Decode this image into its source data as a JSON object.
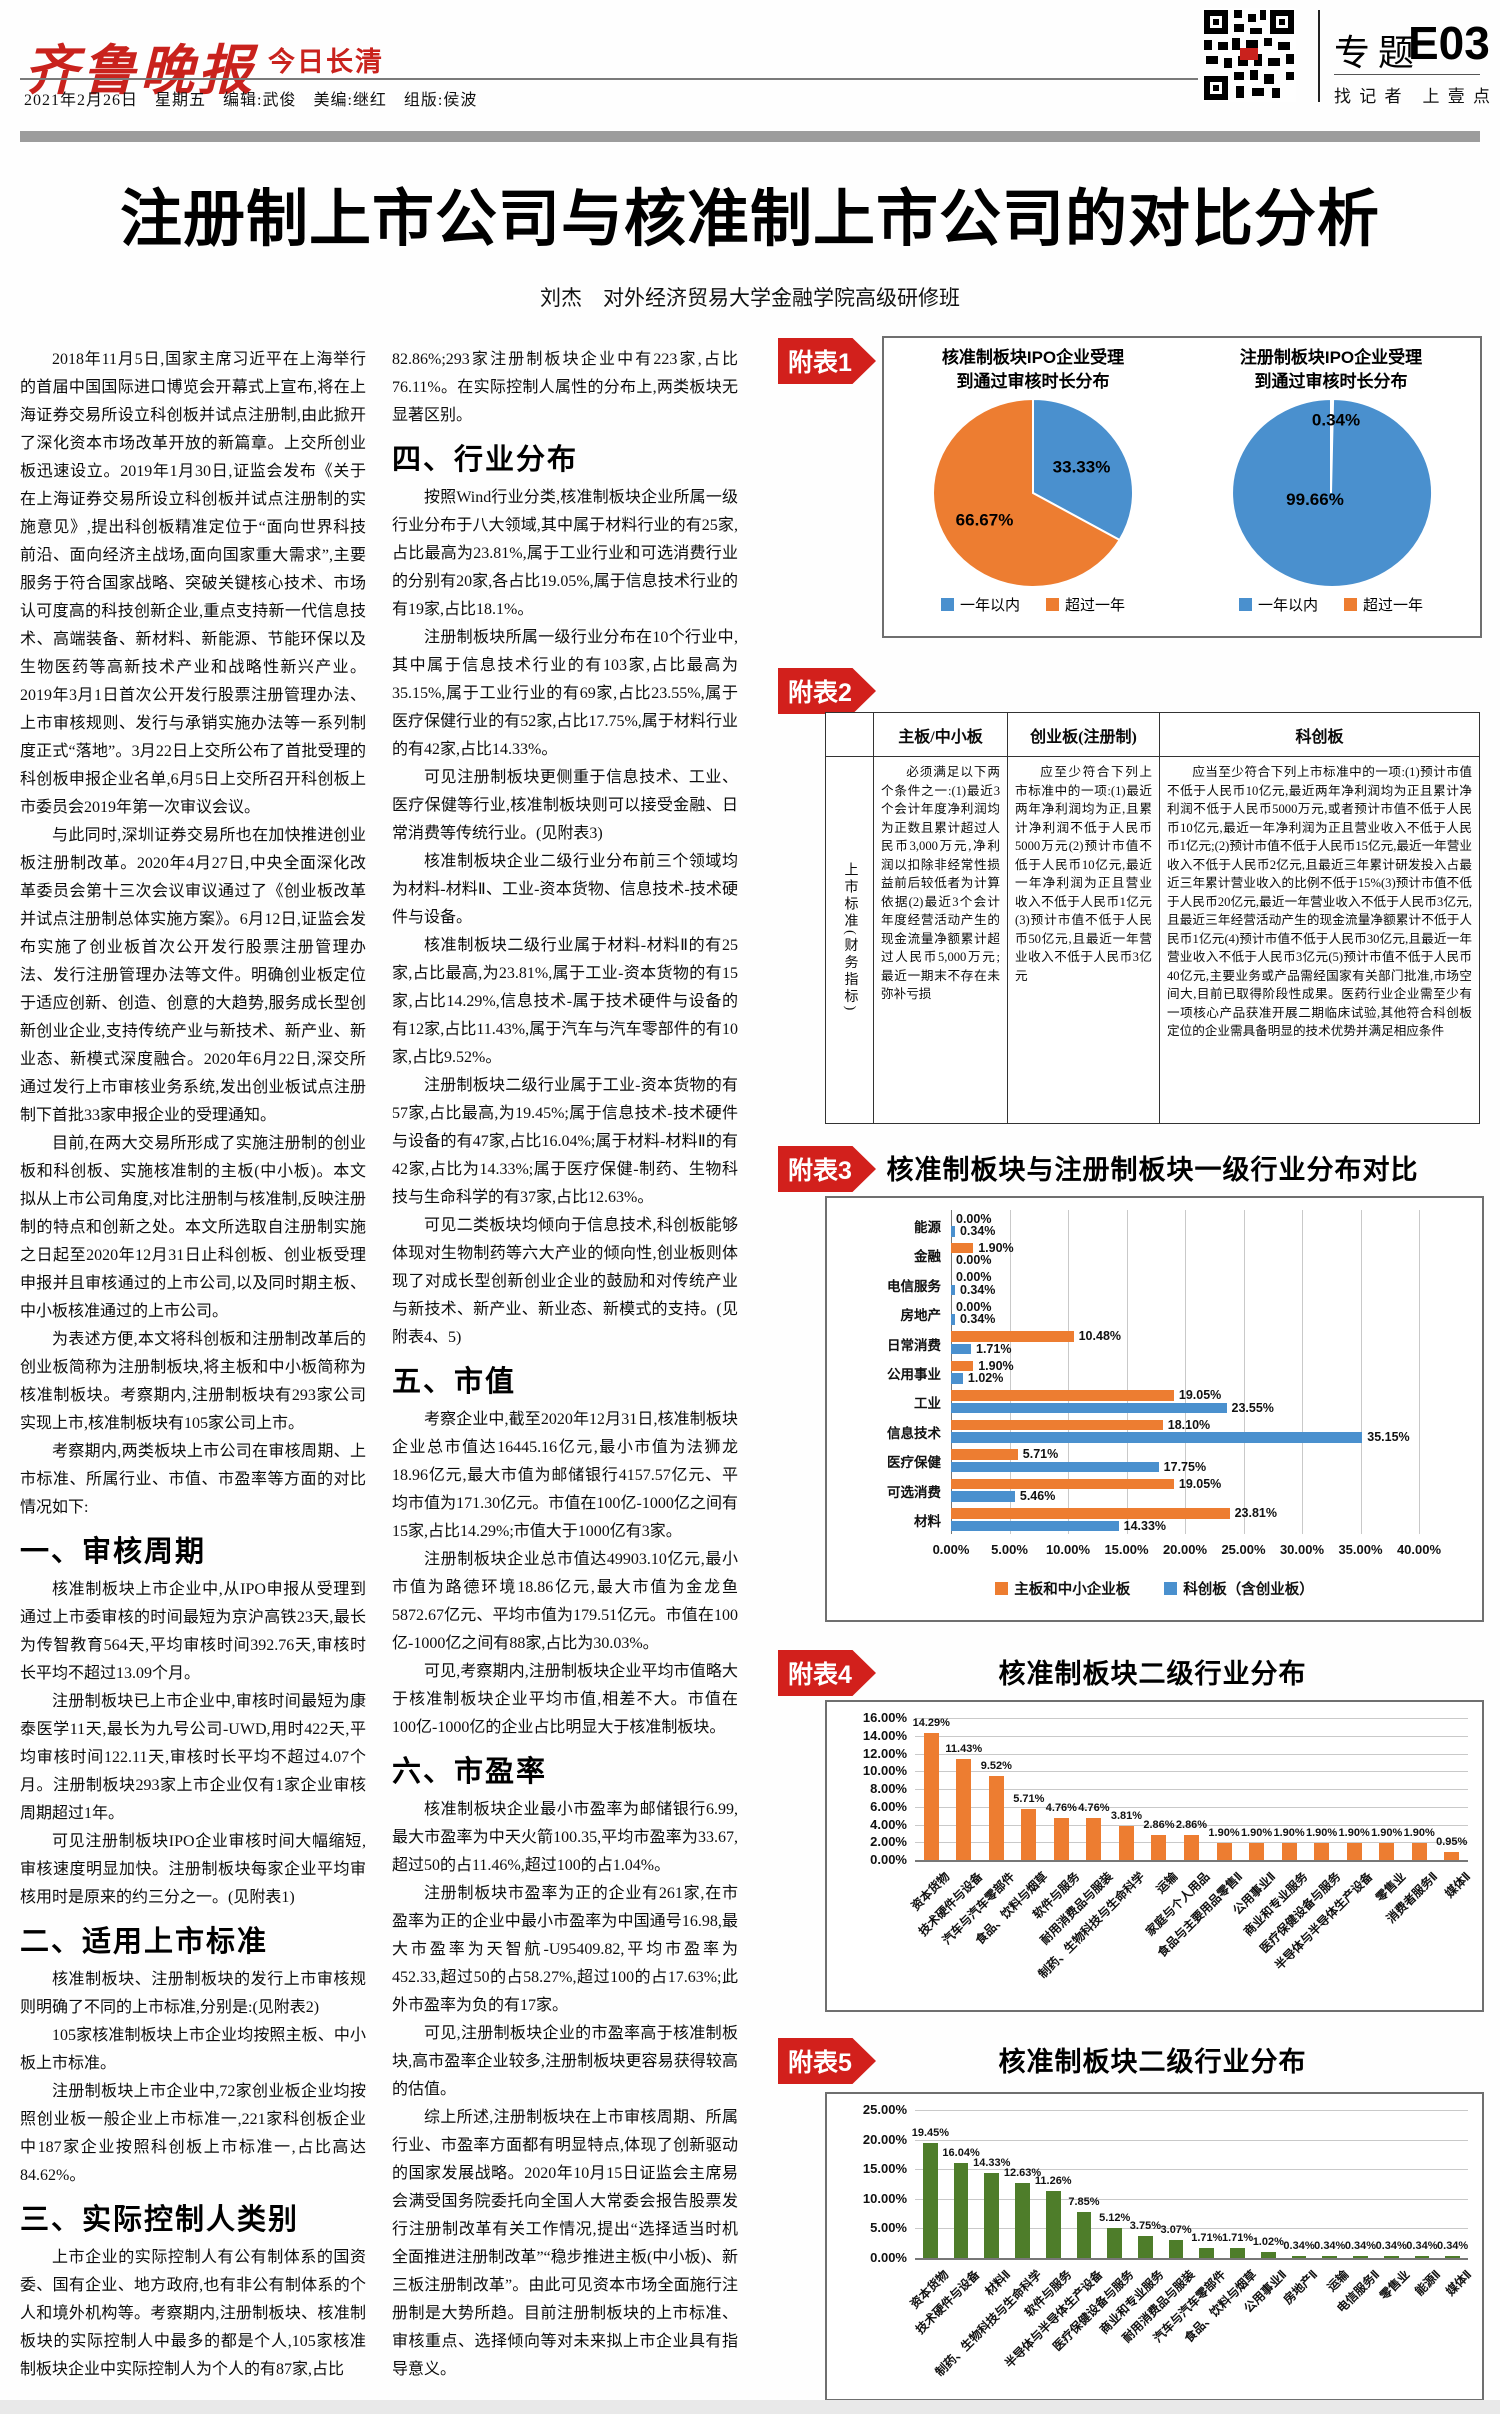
{
  "colors": {
    "blue": "#4A90CE",
    "orange": "#ED7D31",
    "green": "#4E7D2A",
    "red": "#D2201C"
  },
  "header": {
    "masthead": "齐鲁晚报",
    "masthead_sub": "今日长清",
    "dateline": "2021年2月26日　星期五　编辑:武俊　美编:继红　组版:侯波",
    "section_label": "专题",
    "page_number": "E03",
    "slogan": "找 记 者　上 壹 点"
  },
  "article": {
    "title": "注册制上市公司与核准制上市公司的对比分析",
    "byline": "刘杰　对外经济贸易大学金融学院高级研修班",
    "column1": [
      {
        "text": "2018年11月5日,国家主席习近平在上海举行的首届中国国际进口博览会开幕式上宣布,将在上海证券交易所设立科创板并试点注册制,由此掀开了深化资本市场改革开放的新篇章。上交所创业板迅速设立。2019年1月30日,证监会发布《关于在上海证券交易所设立科创板并试点注册制的实施意见》,提出科创板精准定位于“面向世界科技前沿、面向经济主战场,面向国家重大需求”,主要服务于符合国家战略、突破关键核心技术、市场认可度高的科技创新企业,重点支持新一代信息技术、高端装备、新材料、新能源、节能环保以及生物医药等高新技术产业和战略性新兴产业。2019年3月1日首次公开发行股票注册管理办法、上市审核规则、发行与承销实施办法等一系列制度正式“落地”。3月22日上交所公布了首批受理的科创板申报企业名单,6月5日上交所召开科创板上市委员会2019年第一次审议会议。"
      },
      {
        "text": "与此同时,深圳证券交易所也在加快推进创业板注册制改革。2020年4月27日,中央全面深化改革委员会第十三次会议审议通过了《创业板改革并试点注册制总体实施方案》。6月12日,证监会发布实施了创业板首次公开发行股票注册管理办法、发行注册管理办法等文件。明确创业板定位于适应创新、创造、创意的大趋势,服务成长型创新创业企业,支持传统产业与新技术、新产业、新业态、新模式深度融合。2020年6月22日,深交所通过发行上市审核业务系统,发出创业板试点注册制下首批33家申报企业的受理通知。"
      },
      {
        "text": "目前,在两大交易所形成了实施注册制的创业板和科创板、实施核准制的主板(中小板)。本文拟从上市公司角度,对比注册制与核准制,反映注册制的特点和创新之处。本文所选取自注册制实施之日起至2020年12月31日止科创板、创业板受理申报并且审核通过的上市公司,以及同时期主板、中小板核准通过的上市公司。"
      },
      {
        "text": "为表述方便,本文将科创板和注册制改革后的创业板简称为注册制板块,将主板和中小板简称为核准制板块。考察期内,注册制板块有293家公司实现上市,核准制板块有105家公司上市。"
      },
      {
        "text": "考察期内,两类板块上市公司在审核周期、上市标准、所属行业、市值、市盈率等方面的对比情况如下:"
      },
      {
        "h": true,
        "text": "一、审核周期"
      },
      {
        "text": "核准制板块上市企业中,从IPO申报从受理到通过上市委审核的时间最短为京沪高铁23天,最长为传智教育564天,平均审核时间392.76天,审核时长平均不超过13.09个月。"
      },
      {
        "text": "注册制板块已上市企业中,审核时间最短为康泰医学11天,最长为九号公司-UWD,用时422天,平均审核时间122.11天,审核时长平均不超过4.07个月。注册制板块293家上市企业仅有1家企业审核周期超过1年。"
      },
      {
        "text": "可见注册制板块IPO企业审核时间大幅缩短,审核速度明显加快。注册制板块每家企业平均审核用时是原来的约三分之一。(见附表1)"
      },
      {
        "h": true,
        "text": "二、适用上市标准"
      },
      {
        "text": "核准制板块、注册制板块的发行上市审核规则明确了不同的上市标准,分别是:(见附表2)"
      },
      {
        "text": "105家核准制板块上市企业均按照主板、中小板上市标准。"
      },
      {
        "text": "注册制板块上市企业中,72家创业板企业均按照创业板一般企业上市标准一,221家科创板企业中187家企业按照科创板上市标准一,占比高达84.62%。"
      },
      {
        "h": true,
        "text": "三、实际控制人类别"
      },
      {
        "text": "上市企业的实际控制人有公有制体系的国资委、国有企业、地方政府,也有非公有制体系的个人和境外机构等。考察期内,注册制板块、核准制板块的实际控制人中最多的都是个人,105家核准制板块企业中实际控制人为个人的有87家,占比"
      }
    ],
    "column2": [
      {
        "cont": true,
        "text": "82.86%;293家注册制板块企业中有223家,占比76.11%。在实际控制人属性的分布上,两类板块无显著区别。"
      },
      {
        "h": true,
        "text": "四、行业分布"
      },
      {
        "text": "按照Wind行业分类,核准制板块企业所属一级行业分布于八大领域,其中属于材料行业的有25家,占比最高为23.81%,属于工业行业和可选消费行业的分别有20家,各占比19.05%,属于信息技术行业的有19家,占比18.1%。"
      },
      {
        "text": "注册制板块所属一级行业分布在10个行业中,其中属于信息技术行业的有103家,占比最高为35.15%,属于工业行业的有69家,占比23.55%,属于医疗保健行业的有52家,占比17.75%,属于材料行业的有42家,占比14.33%。"
      },
      {
        "text": "可见注册制板块更侧重于信息技术、工业、医疗保健等行业,核准制板块则可以接受金融、日常消费等传统行业。(见附表3)"
      },
      {
        "text": "核准制板块企业二级行业分布前三个领域均为材料-材料Ⅱ、工业-资本货物、信息技术-技术硬件与设备。"
      },
      {
        "text": "核准制板块二级行业属于材料-材料Ⅱ的有25家,占比最高,为23.81%,属于工业-资本货物的有15家,占比14.29%,信息技术-属于技术硬件与设备的有12家,占比11.43%,属于汽车与汽车零部件的有10家,占比9.52%。"
      },
      {
        "text": "注册制板块二级行业属于工业-资本货物的有57家,占比最高,为19.45%;属于信息技术-技术硬件与设备的有47家,占比16.04%;属于材料-材料Ⅱ的有42家,占比为14.33%;属于医疗保健-制药、生物科技与生命科学的有37家,占比12.63%。"
      },
      {
        "text": "可见二类板块均倾向于信息技术,科创板能够体现对生物制药等六大产业的倾向性,创业板则体现了对成长型创新创业企业的鼓励和对传统产业与新技术、新产业、新业态、新模式的支持。(见附表4、5)"
      },
      {
        "h": true,
        "text": "五、市值"
      },
      {
        "text": "考察企业中,截至2020年12月31日,核准制板块企业总市值达16445.16亿元,最小市值为法狮龙18.96亿元,最大市值为邮储银行4157.57亿元、平均市值为171.30亿元。市值在100亿-1000亿之间有15家,占比14.29%;市值大于1000亿有3家。"
      },
      {
        "text": "注册制板块企业总市值达49903.10亿元,最小市值为路德环境18.86亿元,最大市值为金龙鱼5872.67亿元、平均市值为179.51亿元。市值在100亿-1000亿之间有88家,占比为30.03%。"
      },
      {
        "text": "可见,考察期内,注册制板块企业平均市值略大于核准制板块企业平均市值,相差不大。市值在100亿-1000亿的企业占比明显大于核准制板块。"
      },
      {
        "h": true,
        "text": "六、市盈率"
      },
      {
        "text": "核准制板块企业最小市盈率为邮储银行6.99,最大市盈率为中天火箭100.35,平均市盈率为33.67,超过50的占11.46%,超过100的占1.04%。"
      },
      {
        "text": "注册制板块市盈率为正的企业有261家,在市盈率为正的企业中最小市盈率为中国通号16.98,最大市盈率为天智航-U95409.82,平均市盈率为452.33,超过50的占58.27%,超过100的占17.63%;此外市盈率为负的有17家。"
      },
      {
        "text": "可见,注册制板块企业的市盈率高于核准制板块,高市盈率企业较多,注册制板块更容易获得较高的估值。"
      },
      {
        "text": "综上所述,注册制板块在上市审核周期、所属行业、市盈率方面都有明显特点,体现了创新驱动的国家发展战略。2020年10月15日证监会主席易会满受国务院委托向全国人大常委会报告股票发行注册制改革有关工作情况,提出“选择适当时机全面推进注册制改革”“稳步推进主板(中小板)、新三板注册制改革”。由此可见资本市场全面施行注册制是大势所趋。目前注册制板块的上市标准、审核重点、选择倾向等对未来拟上市企业具有指导意义。"
      }
    ]
  },
  "appendix": [
    "附表1",
    "附表2",
    "附表3",
    "附表4",
    "附表5"
  ],
  "table2": {
    "col_headers": [
      "主板/中小板",
      "创业板(注册制)",
      "科创板"
    ],
    "row_header": "上市标准(财务指标)",
    "cells": [
      "必须满足以下两个条件之一:(1)最近3个会计年度净利润均为正数且累计超过人民币3,000万元,净利润以扣除非经常性损益前后较低者为计算依据(2)最近3个会计年度经营活动产生的现金流量净额累计超过人民币5,000万元;最近一期末不存在未弥补亏损",
      "应至少符合下列上市标准中的一项:(1)最近两年净利润均为正,且累计净利润不低于人民币5000万元(2)预计市值不低于人民币10亿元,最近一年净利润为正且营业收入不低于人民币1亿元(3)预计市值不低于人民币50亿元,且最近一年营业收入不低于人民币3亿元",
      "应当至少符合下列上市标准中的一项:(1)预计市值不低于人民币10亿元,最近两年净利润均为正且累计净利润不低于人民币5000万元,或者预计市值不低于人民币10亿元,最近一年净利润为正且营业收入不低于人民币1亿元;(2)预计市值不低于人民币15亿元,最近一年营业收入不低于人民币2亿元,且最近三年累计研发投入占最近三年累计营业收入的比例不低于15%(3)预计市值不低于人民币20亿元,最近一年营业收入不低于人民币3亿元,且最近三年经营活动产生的现金流量净额累计不低于人民币1亿元(4)预计市值不低于人民币30亿元,且最近一年营业收入不低于人民币3亿元(5)预计市值不低于人民币40亿元,主要业务或产品需经国家有关部门批准,市场空间大,目前已取得阶段性成果。医药行业企业需至少有一项核心产品获准开展二期临床试验,其他符合科创板定位的企业需具备明显的技术优势并满足相应条件"
    ]
  },
  "chart_data": [
    {
      "id": "fubiao1",
      "type": "pie",
      "panels": [
        {
          "title": "核准制板块IPO企业受理",
          "subtitle": "到通过审核时长分布",
          "slices": [
            {
              "label": "一年以内",
              "value": 33.33,
              "color": "blue"
            },
            {
              "label": "超过一年",
              "value": 66.67,
              "color": "orange"
            }
          ]
        },
        {
          "title": "注册制板块IPO企业受理",
          "subtitle": "到通过审核时长分布",
          "slices": [
            {
              "label": "超过一年",
              "value": 0.34,
              "color": "orange"
            },
            {
              "label": "一年以内",
              "value": 99.66,
              "color": "blue"
            }
          ]
        }
      ],
      "legend": [
        {
          "label": "一年以内",
          "color": "blue"
        },
        {
          "label": "超过一年",
          "color": "orange"
        }
      ]
    },
    {
      "id": "fubiao3",
      "type": "bar-horizontal",
      "title": "核准制板块与注册制板块一级行业分布对比",
      "categories": [
        "能源",
        "金融",
        "电信服务",
        "房地产",
        "日常消费",
        "公用事业",
        "工业",
        "信息技术",
        "医疗保健",
        "可选消费",
        "材料"
      ],
      "series": [
        {
          "name": "主板和中小企业板",
          "color": "orange",
          "values": [
            0.0,
            1.9,
            0.0,
            0.0,
            10.48,
            1.9,
            19.05,
            18.1,
            5.71,
            19.05,
            23.81
          ]
        },
        {
          "name": "科创板（含创业板）",
          "color": "blue",
          "values": [
            0.34,
            0.0,
            0.34,
            0.34,
            1.71,
            1.02,
            23.55,
            35.15,
            17.75,
            5.46,
            14.33
          ]
        }
      ],
      "xlim": [
        0,
        40
      ],
      "xtick_step": 5,
      "grid": true,
      "legend_position": "bottom"
    },
    {
      "id": "fubiao4",
      "type": "bar",
      "title": "核准制板块二级行业分布",
      "color": "orange",
      "categories": [
        "资本货物",
        "技术硬件与设备",
        "汽车与汽车零部件",
        "食品、饮料与烟草",
        "软件与服务",
        "耐用消费品与服装",
        "制药、生物科技与生命科学",
        "运输",
        "家庭与个人用品",
        "食品与主要用品零售Ⅱ",
        "公用事业Ⅱ",
        "商业和专业服务",
        "医疗保健设备与服务",
        "半导体与半导体生产设备",
        "零售业",
        "消费者服务Ⅱ",
        "媒体Ⅱ"
      ],
      "values": [
        14.29,
        11.43,
        9.52,
        5.71,
        4.76,
        4.76,
        3.81,
        2.86,
        2.86,
        1.9,
        1.9,
        1.9,
        1.9,
        1.9,
        1.9,
        1.9,
        0.95
      ],
      "ylim": [
        0,
        16
      ],
      "ytick_step": 2,
      "grid": true
    },
    {
      "id": "fubiao5",
      "type": "bar",
      "title": "核准制板块二级行业分布",
      "color": "green",
      "categories": [
        "资本货物",
        "技术硬件与设备",
        "材料Ⅱ",
        "制药、生物科技与生命科学",
        "软件与服务",
        "半导体与半导体生产设备",
        "医疗保健设备与服务",
        "商业和专业服务",
        "耐用消费品与服装",
        "汽车与汽车零部件",
        "食品、饮料与烟草",
        "公用事业Ⅱ",
        "房地产Ⅱ",
        "运输",
        "电信服务Ⅱ",
        "零售业",
        "能源Ⅱ",
        "媒体Ⅱ"
      ],
      "values": [
        19.45,
        16.04,
        14.33,
        12.63,
        11.26,
        7.85,
        5.12,
        3.75,
        3.07,
        1.71,
        1.71,
        1.02,
        0.34,
        0.34,
        0.34,
        0.34,
        0.34,
        0.34
      ],
      "ylim": [
        0,
        25
      ],
      "ytick_step": 5,
      "grid": true
    }
  ]
}
